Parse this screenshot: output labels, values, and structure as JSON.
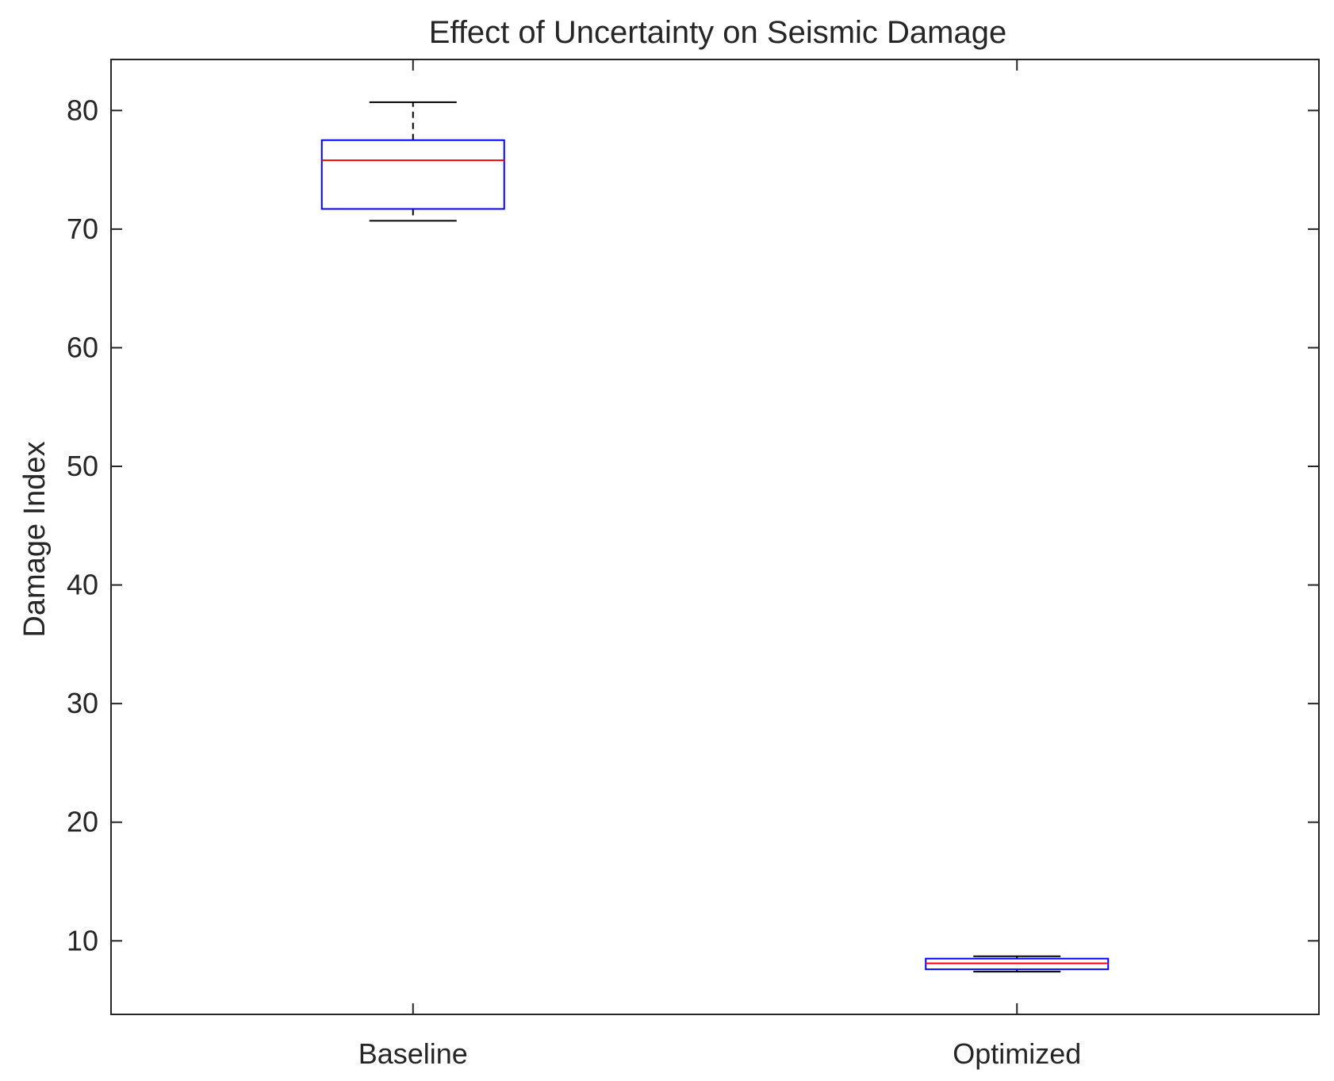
{
  "chart_data": {
    "type": "box",
    "title": "Effect of Uncertainty on Seismic Damage",
    "xlabel": "",
    "ylabel": "Damage Index",
    "ylim": [
      3.8,
      84.3
    ],
    "yticks": [
      10,
      20,
      30,
      40,
      50,
      60,
      70,
      80
    ],
    "categories": [
      "Baseline",
      "Optimized"
    ],
    "boxes": [
      {
        "category": "Baseline",
        "whisker_low": 70.7,
        "q1": 71.7,
        "median": 75.8,
        "q3": 77.5,
        "whisker_high": 80.7
      },
      {
        "category": "Optimized",
        "whisker_low": 7.4,
        "q1": 7.6,
        "median": 8.1,
        "q3": 8.5,
        "whisker_high": 8.7
      }
    ],
    "colors": {
      "box": "#0000ff",
      "median": "#ff0000",
      "whisker": "#000000",
      "axes": "#262626"
    },
    "grid": false
  }
}
